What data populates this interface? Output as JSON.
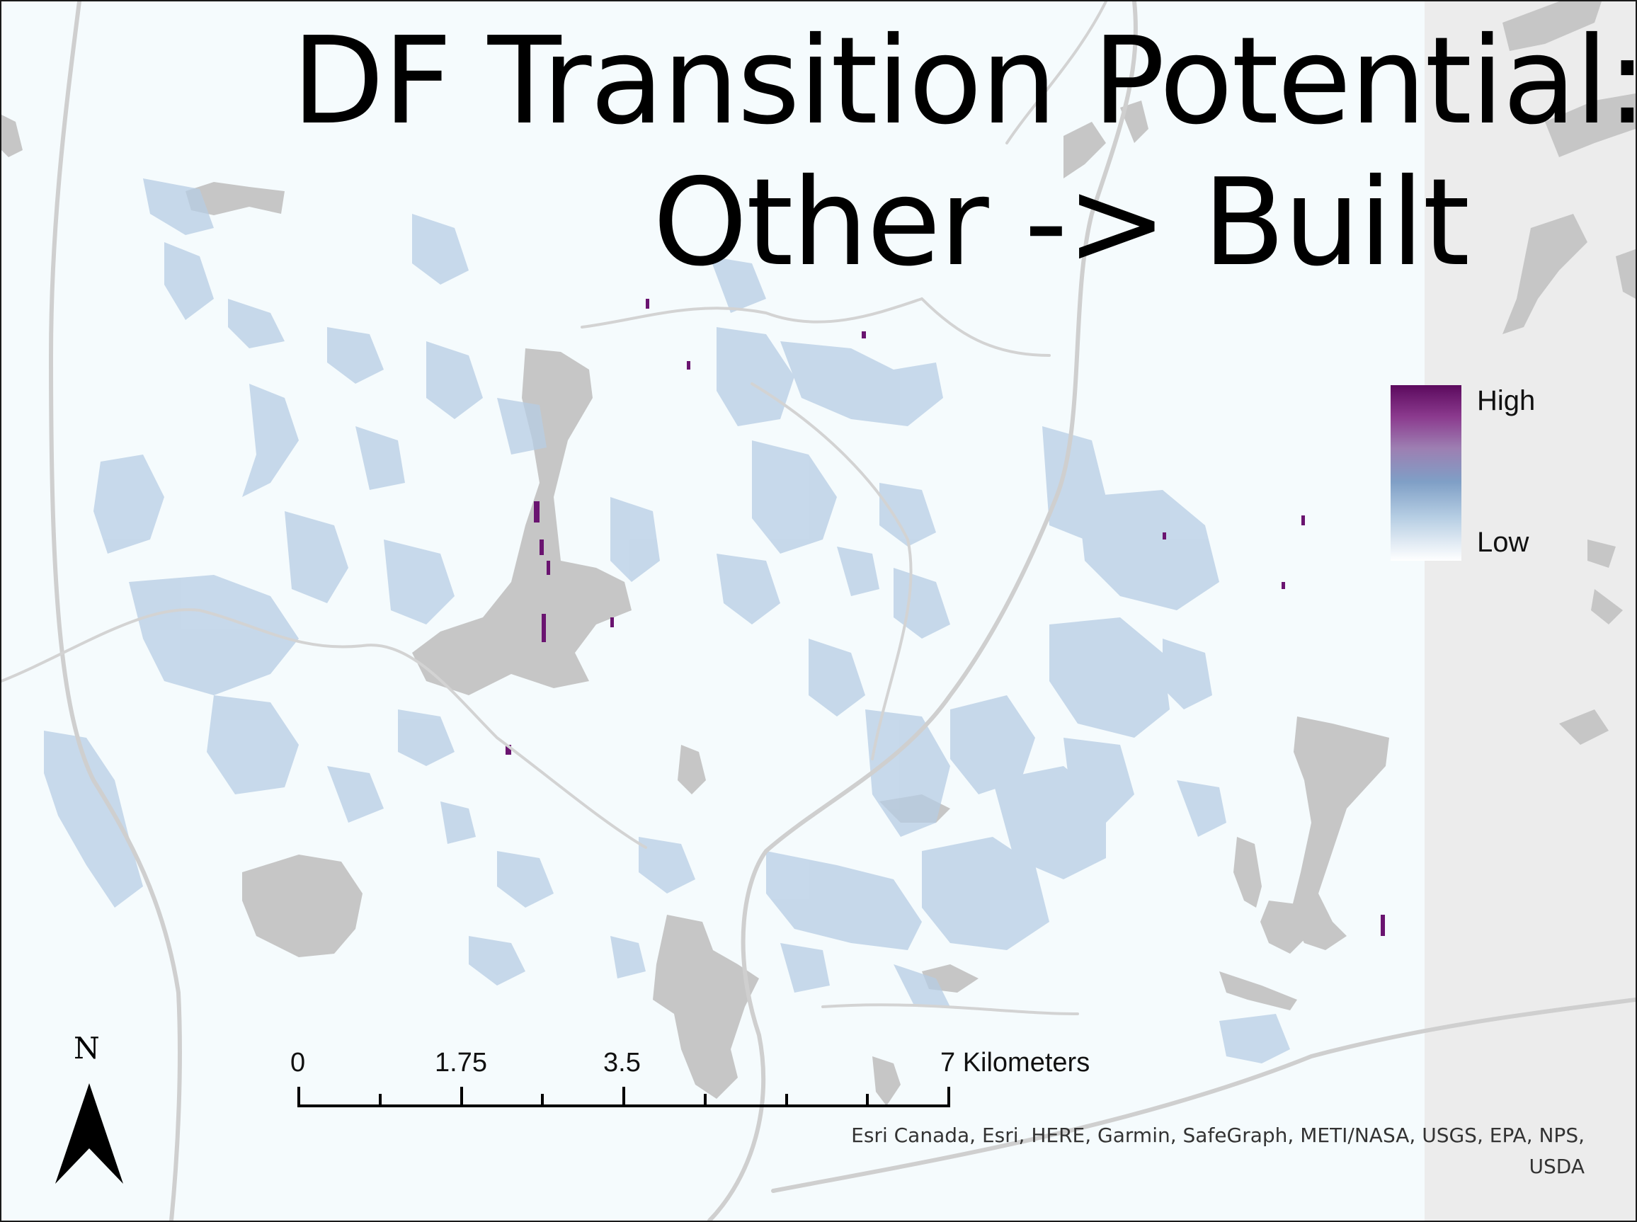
{
  "map": {
    "title_line1": "DF Transition Potential:",
    "title_line2": "Other -> Built",
    "legend": {
      "high_label": "High",
      "low_label": "Low",
      "ramp_colors": [
        "#5c0a5e",
        "#8b3a8e",
        "#9d7fb2",
        "#7f9fc6",
        "#b5cde3",
        "#ffffff"
      ]
    },
    "scale_bar": {
      "ticks": [
        "0",
        "1.75",
        "3.5",
        "7 Kilometers"
      ]
    },
    "north_arrow": {
      "letter": "N"
    },
    "attribution": "Esri Canada, Esri, HERE, Garmin, SafeGraph, METI/NASA, USGS, EPA, NPS, USDA",
    "colors": {
      "background": "#f5fbfd",
      "water_gray": "#c6c6c6",
      "road": "#cfcfcf",
      "potential_light": "#b7cde4",
      "potential_high": "#6a1470"
    }
  }
}
